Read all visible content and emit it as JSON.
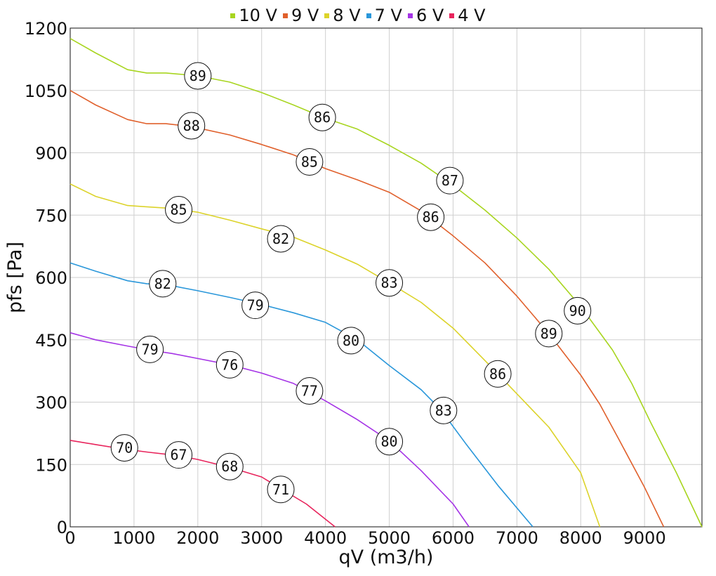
{
  "chart_data": {
    "type": "line",
    "xlabel": "qV (m3/h)",
    "ylabel": "pfs [Pa]",
    "xlim": [
      0,
      9900
    ],
    "ylim": [
      0,
      1200
    ],
    "x_ticks": [
      0,
      1000,
      2000,
      3000,
      4000,
      5000,
      6000,
      7000,
      8000,
      9000
    ],
    "y_ticks": [
      0,
      150,
      300,
      450,
      600,
      750,
      900,
      1050,
      1200
    ],
    "grid": true,
    "legend_position": "top-center",
    "series": [
      {
        "name": "10 V",
        "color": "#a8d51f",
        "points": [
          [
            0,
            1175
          ],
          [
            400,
            1140
          ],
          [
            900,
            1100
          ],
          [
            1200,
            1092
          ],
          [
            1500,
            1092
          ],
          [
            2000,
            1085
          ],
          [
            2500,
            1070
          ],
          [
            3000,
            1045
          ],
          [
            3500,
            1015
          ],
          [
            4000,
            983
          ],
          [
            4500,
            957
          ],
          [
            5000,
            918
          ],
          [
            5500,
            875
          ],
          [
            6000,
            822
          ],
          [
            6500,
            762
          ],
          [
            7000,
            695
          ],
          [
            7500,
            620
          ],
          [
            8000,
            530
          ],
          [
            8500,
            425
          ],
          [
            8800,
            345
          ],
          [
            9100,
            250
          ],
          [
            9500,
            130
          ],
          [
            9900,
            0
          ]
        ],
        "efficiency_labels": [
          {
            "x": 2000,
            "y": 1085,
            "text": "89"
          },
          {
            "x": 3950,
            "y": 985,
            "text": "86"
          },
          {
            "x": 5950,
            "y": 833,
            "text": "87"
          },
          {
            "x": 7950,
            "y": 520,
            "text": "90"
          }
        ]
      },
      {
        "name": "9 V",
        "color": "#e0602c",
        "points": [
          [
            0,
            1050
          ],
          [
            400,
            1015
          ],
          [
            900,
            980
          ],
          [
            1200,
            970
          ],
          [
            1500,
            970
          ],
          [
            1900,
            963
          ],
          [
            2500,
            943
          ],
          [
            3000,
            920
          ],
          [
            3500,
            895
          ],
          [
            4000,
            862
          ],
          [
            4500,
            835
          ],
          [
            5000,
            805
          ],
          [
            5500,
            760
          ],
          [
            6000,
            700
          ],
          [
            6500,
            635
          ],
          [
            7000,
            555
          ],
          [
            7500,
            465
          ],
          [
            8000,
            365
          ],
          [
            8300,
            295
          ],
          [
            8600,
            210
          ],
          [
            9000,
            95
          ],
          [
            9300,
            0
          ]
        ],
        "efficiency_labels": [
          {
            "x": 1900,
            "y": 965,
            "text": "88"
          },
          {
            "x": 3750,
            "y": 878,
            "text": "85"
          },
          {
            "x": 5650,
            "y": 745,
            "text": "86"
          },
          {
            "x": 7500,
            "y": 465,
            "text": "89"
          }
        ]
      },
      {
        "name": "8 V",
        "color": "#dcd32a",
        "points": [
          [
            0,
            825
          ],
          [
            400,
            795
          ],
          [
            900,
            773
          ],
          [
            1200,
            770
          ],
          [
            1500,
            767
          ],
          [
            2000,
            757
          ],
          [
            2500,
            738
          ],
          [
            3000,
            717
          ],
          [
            3500,
            697
          ],
          [
            4000,
            666
          ],
          [
            4500,
            632
          ],
          [
            5000,
            587
          ],
          [
            5500,
            540
          ],
          [
            6000,
            478
          ],
          [
            6500,
            400
          ],
          [
            7000,
            320
          ],
          [
            7500,
            240
          ],
          [
            8000,
            130
          ],
          [
            8300,
            0
          ]
        ],
        "efficiency_labels": [
          {
            "x": 1700,
            "y": 763,
            "text": "85"
          },
          {
            "x": 3300,
            "y": 693,
            "text": "82"
          },
          {
            "x": 5000,
            "y": 587,
            "text": "83"
          },
          {
            "x": 6700,
            "y": 368,
            "text": "86"
          }
        ]
      },
      {
        "name": "7 V",
        "color": "#2a97da",
        "points": [
          [
            0,
            635
          ],
          [
            400,
            615
          ],
          [
            900,
            592
          ],
          [
            1200,
            585
          ],
          [
            1500,
            583
          ],
          [
            2000,
            568
          ],
          [
            2500,
            552
          ],
          [
            3000,
            535
          ],
          [
            3500,
            515
          ],
          [
            4000,
            492
          ],
          [
            4500,
            450
          ],
          [
            5000,
            388
          ],
          [
            5500,
            330
          ],
          [
            5800,
            283
          ],
          [
            6200,
            200
          ],
          [
            6700,
            100
          ],
          [
            7250,
            0
          ]
        ],
        "efficiency_labels": [
          {
            "x": 1450,
            "y": 585,
            "text": "82"
          },
          {
            "x": 2900,
            "y": 533,
            "text": "79"
          },
          {
            "x": 4400,
            "y": 448,
            "text": "80"
          },
          {
            "x": 5850,
            "y": 280,
            "text": "83"
          }
        ]
      },
      {
        "name": "6 V",
        "color": "#a534e6",
        "points": [
          [
            0,
            467
          ],
          [
            400,
            450
          ],
          [
            900,
            435
          ],
          [
            1250,
            425
          ],
          [
            1600,
            417
          ],
          [
            2000,
            405
          ],
          [
            2500,
            390
          ],
          [
            3000,
            370
          ],
          [
            3500,
            345
          ],
          [
            4000,
            303
          ],
          [
            4500,
            258
          ],
          [
            5000,
            207
          ],
          [
            5500,
            135
          ],
          [
            6000,
            55
          ],
          [
            6250,
            0
          ]
        ],
        "efficiency_labels": [
          {
            "x": 1250,
            "y": 427,
            "text": "79"
          },
          {
            "x": 2500,
            "y": 390,
            "text": "76"
          },
          {
            "x": 3750,
            "y": 327,
            "text": "77"
          },
          {
            "x": 5000,
            "y": 205,
            "text": "80"
          }
        ]
      },
      {
        "name": "4 V",
        "color": "#e8245c",
        "points": [
          [
            0,
            208
          ],
          [
            400,
            198
          ],
          [
            800,
            188
          ],
          [
            1200,
            180
          ],
          [
            1650,
            172
          ],
          [
            2000,
            162
          ],
          [
            2500,
            143
          ],
          [
            3000,
            120
          ],
          [
            3300,
            92
          ],
          [
            3700,
            55
          ],
          [
            4150,
            0
          ]
        ],
        "efficiency_labels": [
          {
            "x": 850,
            "y": 190,
            "text": "70"
          },
          {
            "x": 1700,
            "y": 173,
            "text": "67"
          },
          {
            "x": 2500,
            "y": 145,
            "text": "68"
          },
          {
            "x": 3300,
            "y": 90,
            "text": "71"
          }
        ]
      }
    ]
  }
}
